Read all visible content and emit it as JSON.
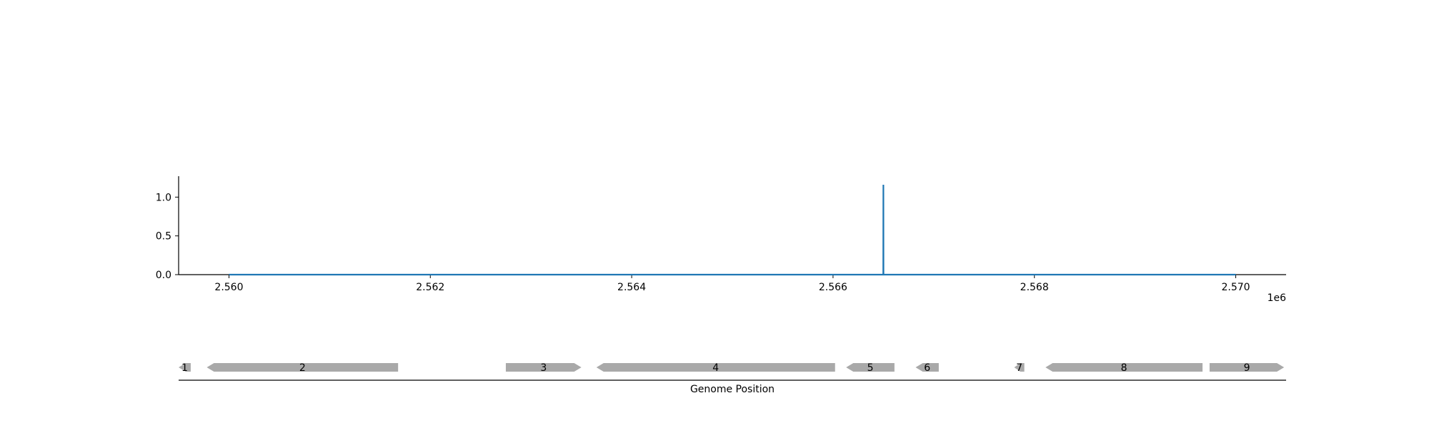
{
  "chart_data": [
    {
      "type": "line",
      "x_offset_label": "1e6",
      "xlim": [
        2559500,
        2570500
      ],
      "ylim": [
        0,
        1.27
      ],
      "x_ticks": [
        2560000,
        2562000,
        2564000,
        2566000,
        2568000,
        2570000
      ],
      "x_tick_labels": [
        "2.560",
        "2.562",
        "2.564",
        "2.566",
        "2.568",
        "2.570"
      ],
      "y_ticks": [
        0.0,
        0.5,
        1.0
      ],
      "y_tick_labels": [
        "0.0",
        "0.5",
        "1.0"
      ],
      "series": [
        {
          "color": "#1f77b4",
          "x": [
            2560000,
            2566499,
            2566500,
            2566501,
            2570000
          ],
          "y": [
            0,
            0,
            1.16,
            0,
            0
          ]
        }
      ],
      "grid": false,
      "spines": [
        "left",
        "bottom"
      ]
    },
    {
      "type": "gene-track",
      "xlim": [
        2559500,
        2570500
      ],
      "xlabel": "Genome Position",
      "gene_color": "#a9a9a9",
      "genes": [
        {
          "label": "1",
          "start": 2559500,
          "end": 2559620,
          "strand": "-"
        },
        {
          "label": "2",
          "start": 2559780,
          "end": 2561680,
          "strand": "-"
        },
        {
          "label": "3",
          "start": 2562750,
          "end": 2563500,
          "strand": "+"
        },
        {
          "label": "4",
          "start": 2563650,
          "end": 2566020,
          "strand": "-"
        },
        {
          "label": "5",
          "start": 2566130,
          "end": 2566610,
          "strand": "-"
        },
        {
          "label": "6",
          "start": 2566820,
          "end": 2567050,
          "strand": "-"
        },
        {
          "label": "7",
          "start": 2567800,
          "end": 2567900,
          "strand": "-"
        },
        {
          "label": "8",
          "start": 2568110,
          "end": 2569670,
          "strand": "-"
        },
        {
          "label": "9",
          "start": 2569740,
          "end": 2570480,
          "strand": "+"
        }
      ]
    }
  ]
}
